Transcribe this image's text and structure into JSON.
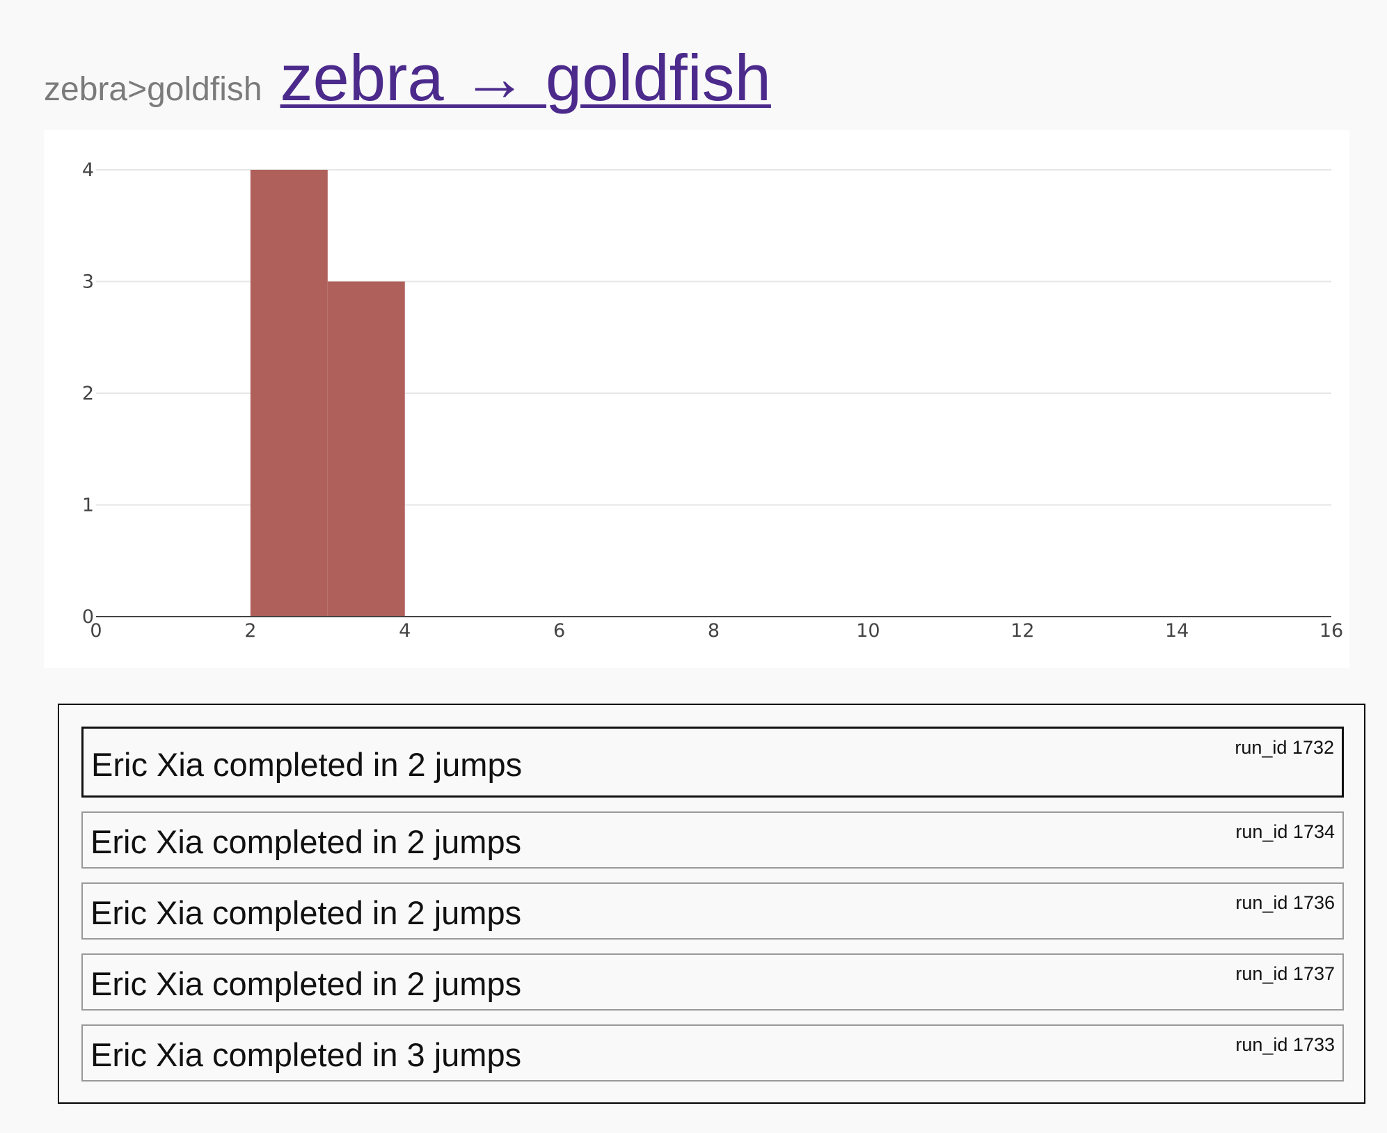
{
  "header": {
    "breadcrumb": "zebra>goldfish",
    "title": "zebra → goldfish"
  },
  "colors": {
    "bar": "#b0605b",
    "link": "#4b2a8c",
    "grid": "#e6e6e6",
    "axis": "#444444"
  },
  "chart_data": {
    "type": "bar",
    "title": "",
    "xlabel": "",
    "ylabel": "",
    "bins": [
      {
        "x0": 2,
        "x1": 3,
        "count": 4
      },
      {
        "x0": 3,
        "x1": 4,
        "count": 3
      }
    ],
    "xlim": [
      0,
      16
    ],
    "ylim": [
      0,
      4
    ],
    "xticks": [
      0,
      2,
      4,
      6,
      8,
      10,
      12,
      14,
      16
    ],
    "yticks": [
      0,
      1,
      2,
      3,
      4
    ],
    "grid": true
  },
  "runs": [
    {
      "text": "Eric Xia completed in 2 jumps",
      "run_id": "run_id 1732",
      "selected": true
    },
    {
      "text": "Eric Xia completed in 2 jumps",
      "run_id": "run_id 1734",
      "selected": false
    },
    {
      "text": "Eric Xia completed in 2 jumps",
      "run_id": "run_id 1736",
      "selected": false
    },
    {
      "text": "Eric Xia completed in 2 jumps",
      "run_id": "run_id 1737",
      "selected": false
    },
    {
      "text": "Eric Xia completed in 3 jumps",
      "run_id": "run_id 1733",
      "selected": false
    }
  ]
}
